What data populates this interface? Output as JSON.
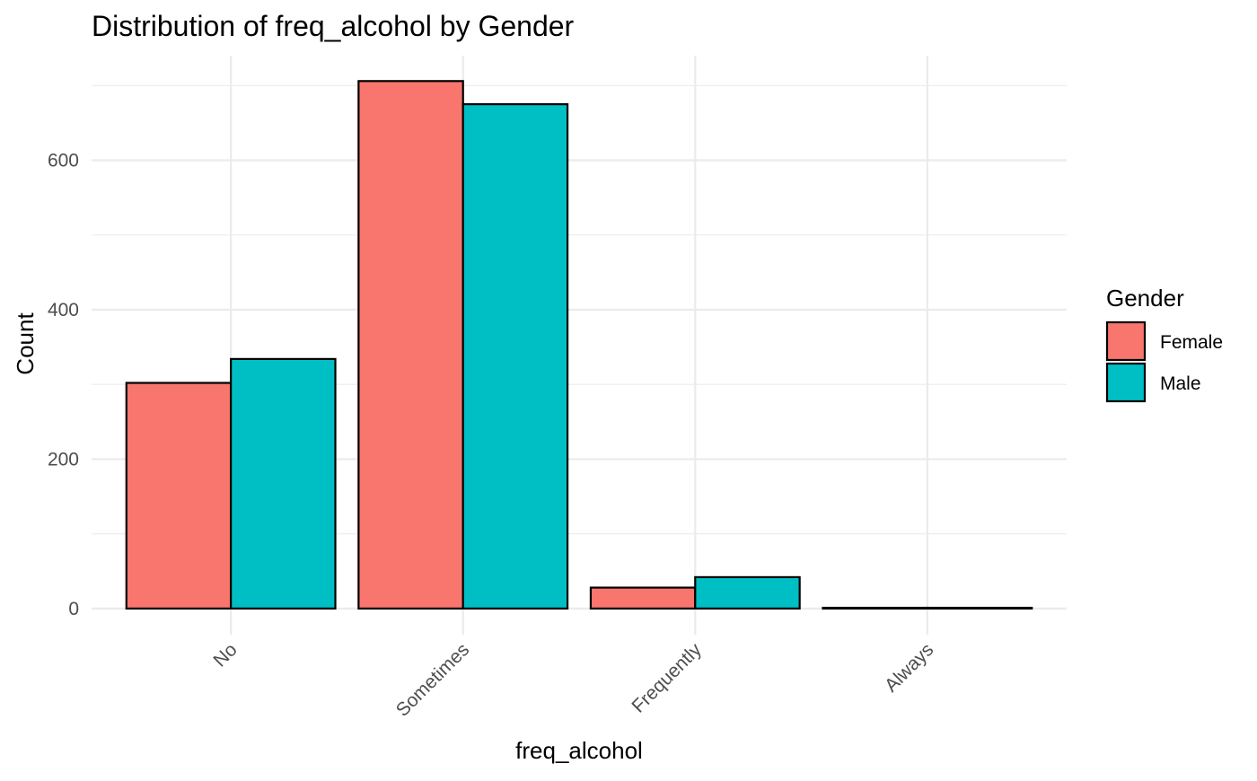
{
  "chart_data": {
    "type": "bar",
    "title": "Distribution of freq_alcohol by Gender",
    "xlabel": "freq_alcohol",
    "ylabel": "Count",
    "categories": [
      "No",
      "Sometimes",
      "Frequently",
      "Always"
    ],
    "series": [
      {
        "name": "Female",
        "color": "#F8766D",
        "values": [
          302,
          706,
          28,
          1
        ]
      },
      {
        "name": "Male",
        "color": "#00BFC4",
        "values": [
          334,
          675,
          42,
          1
        ]
      }
    ],
    "ylim": [
      -35,
      740
    ],
    "yticks": [
      0,
      200,
      400,
      600
    ],
    "grid": true,
    "legend": {
      "title": "Gender",
      "placement": "right"
    }
  },
  "colors": {
    "female": "#F8766D",
    "male": "#00BFC4",
    "grid": "#EBEBEB",
    "tick_text": "#4D4D4D"
  }
}
